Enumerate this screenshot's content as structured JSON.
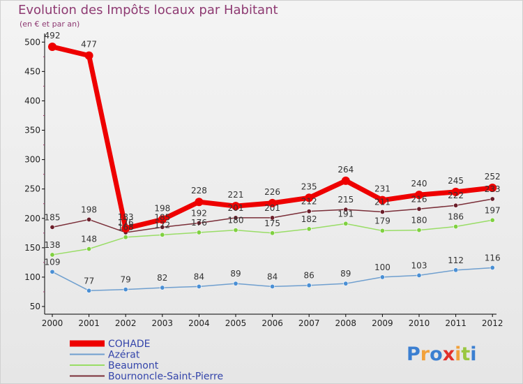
{
  "chart_data": {
    "type": "line",
    "title": "Evolution des Impôts locaux par Habitant",
    "subtitle": "(en € et par an)",
    "xlabel": "",
    "ylabel": "",
    "x": [
      "2000",
      "2001",
      "2002",
      "2003",
      "2004",
      "2005",
      "2006",
      "2007",
      "2008",
      "2009",
      "2010",
      "2011",
      "2012"
    ],
    "y_ticks": [
      "50",
      "100",
      "150",
      "200",
      "250",
      "300",
      "350",
      "400",
      "450",
      "500"
    ],
    "ylim": [
      50,
      510
    ],
    "grid": false,
    "legend_position": "bottom-left",
    "series": [
      {
        "name": "COHADE",
        "color": "#ee0000",
        "values": [
          492,
          477,
          183,
          198,
          228,
          221,
          226,
          235,
          264,
          231,
          240,
          245,
          252
        ],
        "labels": [
          "492",
          "477",
          "183",
          "198",
          "228",
          "221",
          "226",
          "235",
          "264",
          "231",
          "240",
          "245",
          "252"
        ]
      },
      {
        "name": "Azérat",
        "color": "#6f9fcf",
        "values": [
          109,
          77,
          79,
          82,
          84,
          89,
          84,
          86,
          89,
          100,
          103,
          112,
          116
        ],
        "labels": [
          "109",
          "77",
          "79",
          "82",
          "84",
          "89",
          "84",
          "86",
          "89",
          "100",
          "103",
          "112",
          "116"
        ]
      },
      {
        "name": "Beaumont",
        "color": "#99dd66",
        "values": [
          138,
          148,
          168,
          172,
          176,
          180,
          175,
          182,
          191,
          179,
          180,
          186,
          197
        ],
        "labels": [
          "138",
          "148",
          "168",
          "172",
          "176",
          "180",
          "175",
          "182",
          "191",
          "179",
          "180",
          "186",
          "197"
        ]
      },
      {
        "name": "Bournoncle-Saint-Pierre",
        "color": "#7a2e38",
        "values": [
          185,
          198,
          176,
          185,
          192,
          201,
          201,
          212,
          215,
          211,
          216,
          222,
          233
        ],
        "labels": [
          "185",
          "198",
          "176",
          "185",
          "192",
          "201",
          "201",
          "212",
          "215",
          "211",
          "216",
          "222",
          "233"
        ]
      }
    ]
  },
  "brand": {
    "text": "Proxiti",
    "colors": [
      "#3b7fd1",
      "#f2a13a",
      "#3b7fd1",
      "#e2302a",
      "#f2a13a",
      "#9ac741",
      "#3b7fd1"
    ]
  }
}
